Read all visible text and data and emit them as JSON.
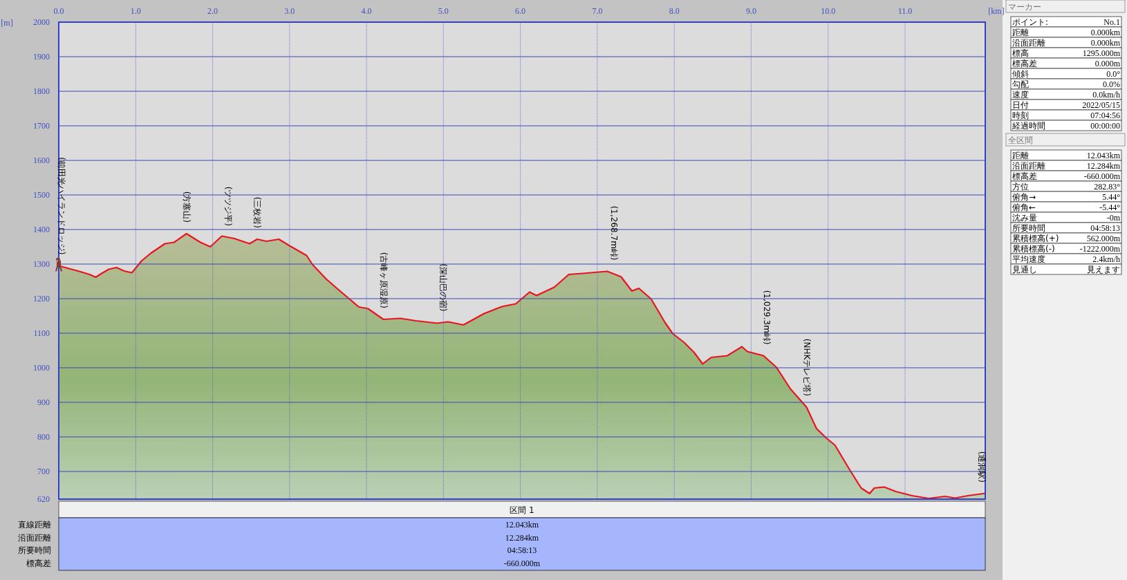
{
  "chart_data": [
    {
      "type": "area",
      "xlabel": "[km]",
      "ylabel": "[m]",
      "xlim": [
        0,
        12.043
      ],
      "ylim": [
        620,
        2000
      ],
      "xticks": [
        {
          "value": 0,
          "label": "0.0"
        },
        {
          "value": 1,
          "label": "1.0"
        },
        {
          "value": 2,
          "label": "2.0"
        },
        {
          "value": 3,
          "label": "3.0"
        },
        {
          "value": 4,
          "label": "4.0"
        },
        {
          "value": 5,
          "label": "5.0"
        },
        {
          "value": 6,
          "label": "6.0"
        },
        {
          "value": 7,
          "label": "7.0"
        },
        {
          "value": 8,
          "label": "8.0"
        },
        {
          "value": 9,
          "label": "9.0"
        },
        {
          "value": 10,
          "label": "10.0"
        },
        {
          "value": 11,
          "label": "11.0"
        }
      ],
      "yticks": [
        620,
        700,
        800,
        900,
        1000,
        1100,
        1200,
        1300,
        1400,
        1500,
        1600,
        1700,
        1800,
        1900,
        2000
      ],
      "grid": true,
      "series": [
        {
          "color": "#e8141e",
          "x": [
            0,
            0.1,
            0.25,
            0.4,
            0.48,
            0.55,
            0.65,
            0.75,
            0.85,
            0.95,
            1.08,
            1.2,
            1.38,
            1.5,
            1.66,
            1.84,
            1.97,
            2.12,
            2.28,
            2.48,
            2.58,
            2.7,
            2.86,
            3.0,
            3.22,
            3.3,
            3.48,
            3.64,
            3.9,
            4.02,
            4.22,
            4.44,
            4.64,
            4.92,
            5.06,
            5.26,
            5.53,
            5.76,
            5.94,
            6.12,
            6.21,
            6.44,
            6.63,
            6.81,
            7.13,
            7.31,
            7.45,
            7.54,
            7.7,
            7.88,
            7.98,
            8.13,
            8.26,
            8.37,
            8.48,
            8.69,
            8.88,
            8.95,
            9.16,
            9.33,
            9.51,
            9.72,
            9.85,
            9.98,
            10.09,
            10.28,
            10.43,
            10.54,
            10.6,
            10.73,
            10.88,
            11.09,
            11.31,
            11.52,
            11.65,
            11.82,
            12.02,
            12.043
          ],
          "values": [
            1295,
            1289,
            1280,
            1270,
            1262,
            1272,
            1285,
            1290,
            1280,
            1275,
            1310,
            1332,
            1359,
            1363,
            1388,
            1363,
            1350,
            1381,
            1374,
            1359,
            1372,
            1366,
            1372,
            1353,
            1325,
            1298,
            1256,
            1225,
            1176,
            1171,
            1140,
            1143,
            1136,
            1129,
            1133,
            1124,
            1157,
            1177,
            1185,
            1219,
            1209,
            1233,
            1270,
            1273,
            1279,
            1263,
            1222,
            1230,
            1199,
            1131,
            1099,
            1073,
            1044,
            1011,
            1030,
            1035,
            1061,
            1047,
            1035,
            1001,
            939,
            886,
            824,
            796,
            776,
            705,
            652,
            636,
            652,
            655,
            642,
            630,
            622,
            628,
            623,
            630,
            636,
            637
          ]
        }
      ],
      "annotations": [
        {
          "text": "(前田光ハイランドロッジ)",
          "x": 0,
          "y": 1295
        },
        {
          "text": "(方塞山)",
          "x": 1.66,
          "y": 1388
        },
        {
          "text": "(ツツジ平)",
          "x": 2.2,
          "y": 1378
        },
        {
          "text": "(三枚岩)",
          "x": 2.58,
          "y": 1372
        },
        {
          "text": "(古峰ヶ原湿原)",
          "x": 4.22,
          "y": 1140
        },
        {
          "text": "(深山巴の宿)",
          "x": 5.0,
          "y": 1131
        },
        {
          "text": "(1,268.7m峠)",
          "x": 7.22,
          "y": 1279
        },
        {
          "text": "(1,029.3m峠)",
          "x": 9.2,
          "y": 1035
        },
        {
          "text": "(NHKテレビ塔)",
          "x": 9.72,
          "y": 886
        },
        {
          "text": "(通洞駅)",
          "x": 12.0,
          "y": 636
        }
      ]
    },
    {
      "type": "other",
      "title": "マーカー",
      "annotations": [
        "ポイント:",
        "No.1",
        "距離",
        "0.000km",
        "沿面距離",
        "0.000km",
        "標高",
        "1295.000m",
        "標高差",
        "0.000m",
        "傾斜",
        "0.0°",
        "勾配",
        "0.0%",
        "速度",
        "0.0km/h",
        "日付",
        "2022/05/15",
        "時刻",
        "07:04:56",
        "経過時間",
        "00:00:00"
      ]
    },
    {
      "type": "other",
      "title": "全区間",
      "annotations": [
        "距離",
        "12.043km",
        "沿面距離",
        "12.284km",
        "標高差",
        "-660.000m",
        "方位",
        "282.83°",
        "俯角→",
        "5.44°",
        "俯角←",
        "-5.44°",
        "沈み量",
        "-0m",
        "所要時間",
        "04:58:13",
        "累積標高(+)",
        "562.000m",
        "累積標高(-)",
        "-1222.000m",
        "平均速度",
        "2.4km/h",
        "見通し",
        "見えます"
      ]
    },
    {
      "type": "other",
      "title": "区間 1",
      "annotations": [
        "直線距離",
        "12.043km",
        "沿面距離",
        "12.284km",
        "所要時間",
        "04:58:13",
        "標高差",
        "-660.000m"
      ]
    }
  ]
}
